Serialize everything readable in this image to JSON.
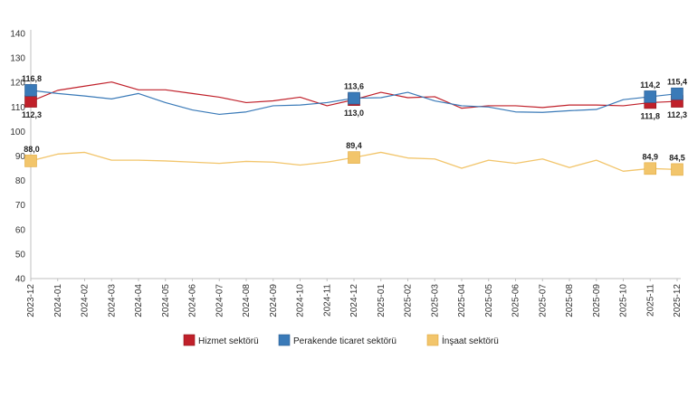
{
  "chart_data": {
    "type": "line",
    "title": "",
    "xlabel": "",
    "ylabel": "",
    "ylim": [
      40,
      140
    ],
    "yticks": [
      "40",
      "50",
      "60",
      "70",
      "80",
      "90",
      "100",
      "110",
      "120",
      "130",
      "140"
    ],
    "grid": false,
    "legend_position": "bottom",
    "categories": [
      "2023-12",
      "2024-01",
      "2024-02",
      "2024-03",
      "2024-04",
      "2024-05",
      "2024-06",
      "2024-07",
      "2024-08",
      "2024-09",
      "2024-10",
      "2024-11",
      "2024-12",
      "2025-01",
      "2025-02",
      "2025-03",
      "2025-04",
      "2025-05",
      "2025-06",
      "2025-07",
      "2025-08",
      "2025-09",
      "2025-10",
      "2025-11",
      "2025-12"
    ],
    "series": [
      {
        "name": "Hizmet sektörü",
        "color": "#c0202a",
        "values": [
          112.3,
          116.8,
          118.5,
          120.2,
          117.0,
          117.0,
          115.5,
          114.0,
          111.8,
          112.5,
          114.0,
          110.5,
          113.0,
          116.0,
          113.8,
          114.2,
          109.5,
          110.5,
          110.5,
          109.8,
          110.8,
          110.8,
          110.5,
          111.8,
          112.3
        ],
        "markers": [
          {
            "index": 0,
            "label": "112,3",
            "pos": "below"
          },
          {
            "index": 12,
            "label": "113,0",
            "pos": "below"
          },
          {
            "index": 23,
            "label": "111,8",
            "pos": "below"
          },
          {
            "index": 24,
            "label": "112,3",
            "pos": "below"
          }
        ]
      },
      {
        "name": "Perakende ticaret sektörü",
        "color": "#3a7ab8",
        "values": [
          116.8,
          115.5,
          114.5,
          113.3,
          115.5,
          111.8,
          108.8,
          107.0,
          108.0,
          110.5,
          110.8,
          111.8,
          113.6,
          113.8,
          116.0,
          112.5,
          110.5,
          110.0,
          108.0,
          107.8,
          108.5,
          109.0,
          113.0,
          114.2,
          115.4
        ],
        "markers": [
          {
            "index": 0,
            "label": "116,8",
            "pos": "above"
          },
          {
            "index": 12,
            "label": "113,6",
            "pos": "above"
          },
          {
            "index": 23,
            "label": "114,2",
            "pos": "above"
          },
          {
            "index": 24,
            "label": "115,4",
            "pos": "above"
          }
        ]
      },
      {
        "name": "İnşaat sektörü",
        "color": "#f2c56b",
        "values": [
          88.0,
          90.8,
          91.5,
          88.3,
          88.3,
          88.0,
          87.5,
          87.0,
          87.8,
          87.5,
          86.3,
          87.5,
          89.4,
          91.5,
          89.2,
          88.8,
          85.0,
          88.3,
          87.0,
          88.8,
          85.3,
          88.3,
          83.8,
          84.9,
          84.5
        ],
        "markers": [
          {
            "index": 0,
            "label": "88,0",
            "pos": "above"
          },
          {
            "index": 12,
            "label": "89,4",
            "pos": "above"
          },
          {
            "index": 23,
            "label": "84,9",
            "pos": "above"
          },
          {
            "index": 24,
            "label": "84,5",
            "pos": "above"
          }
        ]
      }
    ]
  }
}
